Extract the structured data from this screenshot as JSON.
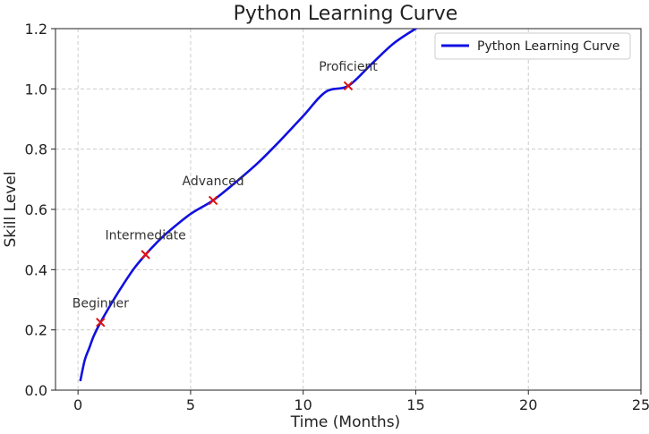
{
  "chart_data": {
    "type": "line",
    "title": "Python Learning Curve",
    "xlabel": "Time (Months)",
    "ylabel": "Skill Level",
    "xlim": [
      -1,
      25
    ],
    "ylim": [
      0,
      1.2
    ],
    "xticks": [
      0,
      5,
      10,
      15,
      20,
      25
    ],
    "yticks": [
      0.0,
      0.2,
      0.4,
      0.6,
      0.8,
      1.0,
      1.2
    ],
    "grid": true,
    "legend_position": "top-right",
    "series": [
      {
        "name": "Python Learning Curve",
        "color": "#1010e0",
        "x": [
          0.1,
          0.3,
          0.5,
          0.7,
          1,
          1.5,
          2,
          2.5,
          3,
          3.5,
          4,
          5,
          6,
          7,
          8,
          9,
          10,
          11,
          12,
          13,
          14,
          15,
          15.5
        ],
        "y": [
          0.03,
          0.1,
          0.14,
          0.18,
          0.225,
          0.29,
          0.35,
          0.405,
          0.45,
          0.49,
          0.525,
          0.585,
          0.63,
          0.69,
          0.755,
          0.83,
          0.91,
          0.99,
          1.01,
          1.08,
          1.15,
          1.2,
          1.22
        ]
      }
    ],
    "markers": {
      "color": "#e01010",
      "points": [
        {
          "x": 1,
          "y": 0.225,
          "label": "Beginner"
        },
        {
          "x": 3,
          "y": 0.45,
          "label": "Intermediate"
        },
        {
          "x": 6,
          "y": 0.63,
          "label": "Advanced"
        },
        {
          "x": 12,
          "y": 1.01,
          "label": "Proficient"
        }
      ]
    }
  }
}
